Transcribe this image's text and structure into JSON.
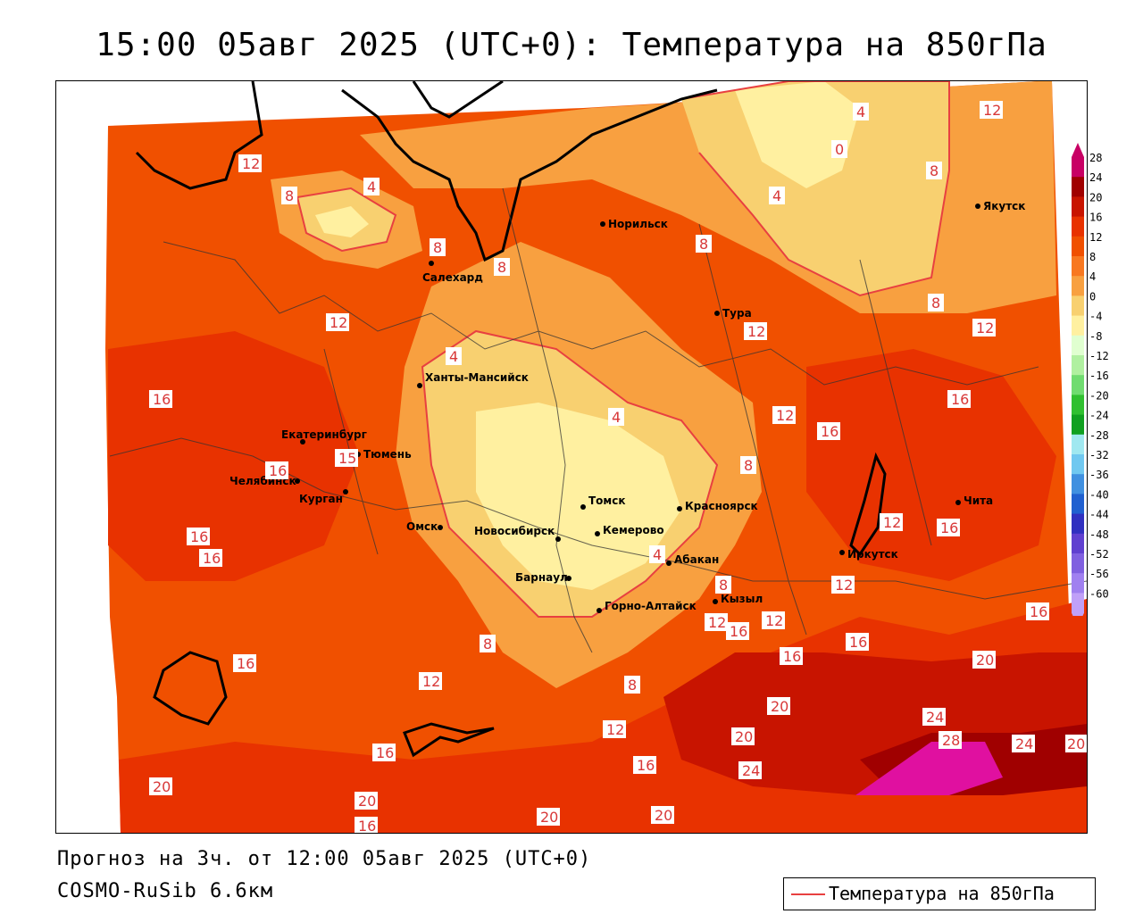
{
  "title": "15:00 05авг 2025 (UTC+0): Температура на 850гПа",
  "footer": {
    "forecast": "Прогноз на 3ч. от 12:00 05авг 2025 (UTC+0)",
    "model": "COSMO-RuSib 6.6км"
  },
  "legend": {
    "label": "Температура на 850гПа",
    "color": "#e84040"
  },
  "colorbar": {
    "ticks": [
      "28",
      "24",
      "20",
      "16",
      "12",
      "8",
      "4",
      "0",
      "-4",
      "-8",
      "-12",
      "-16",
      "-20",
      "-24",
      "-28",
      "-32",
      "-36",
      "-40",
      "-44",
      "-48",
      "-52",
      "-56",
      "-60"
    ],
    "colors": [
      "#c80064",
      "#a00000",
      "#c81400",
      "#e83200",
      "#f05000",
      "#f87820",
      "#f8a040",
      "#f8d070",
      "#fff0a0",
      "#e0ffd0",
      "#b0f0a0",
      "#70dc70",
      "#30c030",
      "#10a020",
      "#a0e8f0",
      "#70c8f0",
      "#4090e0",
      "#2060d0",
      "#3030c0",
      "#6040d0",
      "#8060e0",
      "#a080f0",
      "#c0a0f8"
    ]
  },
  "cities": [
    {
      "name": "Норильск"
    },
    {
      "name": "Якутск"
    },
    {
      "name": "Салехард"
    },
    {
      "name": "Тура"
    },
    {
      "name": "Ханты-Мансийск"
    },
    {
      "name": "Екатеринбург"
    },
    {
      "name": "Тюмень"
    },
    {
      "name": "Челябинск"
    },
    {
      "name": "Курган"
    },
    {
      "name": "Омск"
    },
    {
      "name": "Томск"
    },
    {
      "name": "Новосибирск"
    },
    {
      "name": "Кемерово"
    },
    {
      "name": "Красноярск"
    },
    {
      "name": "Абакан"
    },
    {
      "name": "Барнаул"
    },
    {
      "name": "Горно-Алтайск"
    },
    {
      "name": "Кызыл"
    },
    {
      "name": "Иркутск"
    },
    {
      "name": "Чита"
    }
  ],
  "contour_labels": [
    "12",
    "8",
    "4",
    "8",
    "8",
    "8",
    "4",
    "0",
    "4",
    "8",
    "12",
    "8",
    "12",
    "12",
    "16",
    "4",
    "4",
    "12",
    "12",
    "16",
    "16",
    "8",
    "15",
    "16",
    "16",
    "16",
    "12",
    "8",
    "16",
    "12",
    "12",
    "12",
    "16",
    "8",
    "16",
    "20",
    "16",
    "16",
    "12",
    "16",
    "20",
    "24",
    "20",
    "28",
    "24",
    "20",
    "12",
    "16",
    "24",
    "16",
    "20",
    "16",
    "20",
    "20",
    "20",
    "4",
    "8"
  ]
}
